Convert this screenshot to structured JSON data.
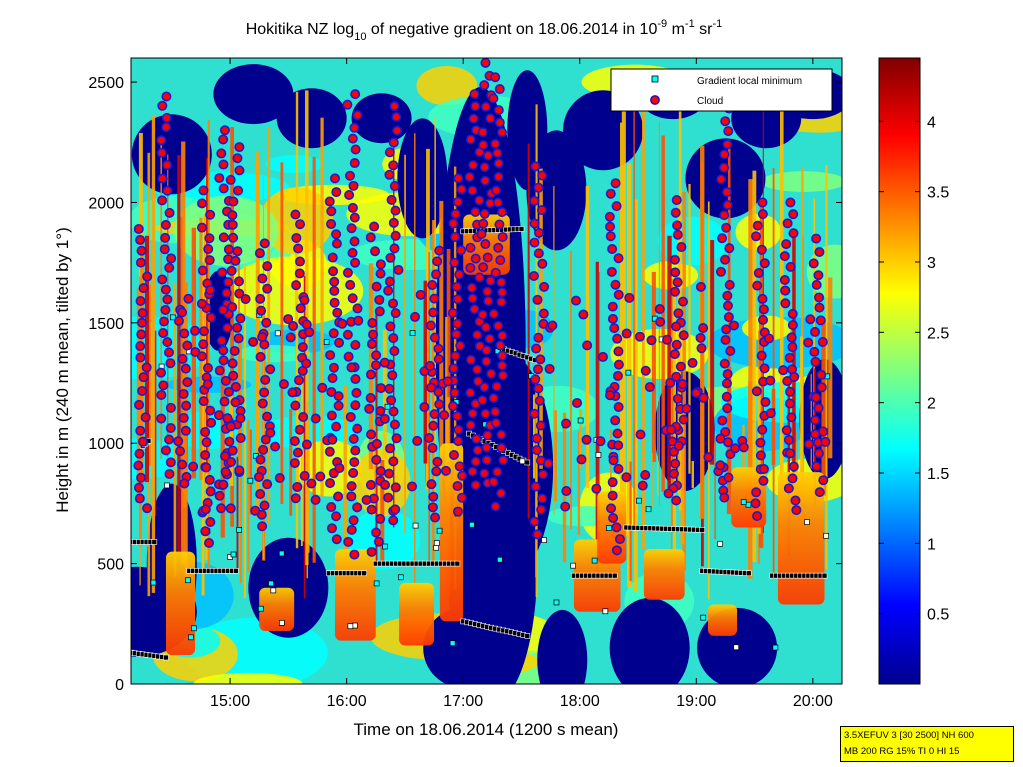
{
  "figure": {
    "title_parts": [
      "Hokitika NZ log",
      "10",
      " of negative gradient on 18.06.2014 in 10",
      "-9",
      " m",
      "-1",
      " sr",
      "-1"
    ]
  },
  "info_box": {
    "line1": "3.5XEFUV 3 [30 2500] NH 600",
    "line2": "MB 200 RG 15% TI 0 HI 15"
  },
  "chart_data": {
    "type": "heatmap",
    "xlabel": "Time on 18.06.2014 (1200 s mean)",
    "ylabel": "Height in m (240 m mean, tilted by 1°)",
    "xlim": [
      14.15,
      20.25
    ],
    "ylim": [
      0,
      2600
    ],
    "x_ticks": [
      15,
      16,
      17,
      18,
      19,
      20
    ],
    "x_tick_labels": [
      "15:00",
      "16:00",
      "17:00",
      "18:00",
      "19:00",
      "20:00"
    ],
    "y_ticks": [
      0,
      500,
      1000,
      1500,
      2000,
      2500
    ],
    "y_tick_labels": [
      "0",
      "500",
      "1000",
      "1500",
      "2000",
      "2500"
    ],
    "colorbar": {
      "lim": [
        0,
        4.45
      ],
      "ticks": [
        0.5,
        1,
        1.5,
        2,
        2.5,
        3,
        3.5,
        4
      ],
      "tick_labels": [
        "0.5",
        "1",
        "1.5",
        "2",
        "2.5",
        "3",
        "3.5",
        "4"
      ],
      "colormap": "jet"
    },
    "legend": {
      "position": "top-right",
      "entries": [
        {
          "label": "Gradient local minimum",
          "marker": "square",
          "color": "#00ffff"
        },
        {
          "label": "Cloud",
          "marker": "circle",
          "color": "#ff0000"
        }
      ]
    },
    "gradient_minimum_layers": [
      {
        "t": [
          14.15,
          14.35
        ],
        "h": [
          590,
          590
        ]
      },
      {
        "t": [
          14.15,
          14.45
        ],
        "h": [
          130,
          110
        ]
      },
      {
        "t": [
          14.25,
          14.3
        ],
        "h": [
          990,
          1010
        ]
      },
      {
        "t": [
          14.65,
          15.05
        ],
        "h": [
          470,
          470
        ]
      },
      {
        "t": [
          15.85,
          16.15
        ],
        "h": [
          460,
          460
        ]
      },
      {
        "t": [
          16.25,
          16.95
        ],
        "h": [
          500,
          500
        ]
      },
      {
        "t": [
          17.0,
          17.5
        ],
        "h": [
          1880,
          1890
        ]
      },
      {
        "t": [
          17.35,
          17.65
        ],
        "h": [
          1390,
          1340
        ]
      },
      {
        "t": [
          17.05,
          17.55
        ],
        "h": [
          1040,
          920
        ]
      },
      {
        "t": [
          17.0,
          17.55
        ],
        "h": [
          260,
          200
        ]
      },
      {
        "t": [
          17.95,
          18.3
        ],
        "h": [
          450,
          450
        ]
      },
      {
        "t": [
          18.4,
          19.05
        ],
        "h": [
          650,
          640
        ]
      },
      {
        "t": [
          19.05,
          19.45
        ],
        "h": [
          470,
          460
        ]
      },
      {
        "t": [
          19.65,
          20.1
        ],
        "h": [
          450,
          450
        ]
      }
    ],
    "cloud_bases": [
      {
        "t": 14.25,
        "h": 1890
      },
      {
        "t": 14.45,
        "h": 2440
      },
      {
        "t": 14.6,
        "h": 1600
      },
      {
        "t": 14.8,
        "h": 2050
      },
      {
        "t": 14.95,
        "h": 2300
      },
      {
        "t": 15.05,
        "h": 2230
      },
      {
        "t": 15.3,
        "h": 1830
      },
      {
        "t": 15.6,
        "h": 1950
      },
      {
        "t": 15.9,
        "h": 2100
      },
      {
        "t": 16.05,
        "h": 2450
      },
      {
        "t": 16.25,
        "h": 1900
      },
      {
        "t": 16.4,
        "h": 2400
      },
      {
        "t": 16.75,
        "h": 1800
      },
      {
        "t": 16.95,
        "h": 2100
      },
      {
        "t": 17.1,
        "h": 2450
      },
      {
        "t": 17.2,
        "h": 2580
      },
      {
        "t": 17.3,
        "h": 2520
      },
      {
        "t": 17.65,
        "h": 2150
      },
      {
        "t": 18.3,
        "h": 2080
      },
      {
        "t": 18.85,
        "h": 2010
      },
      {
        "t": 19.25,
        "h": 2390
      },
      {
        "t": 19.55,
        "h": 2000
      },
      {
        "t": 19.8,
        "h": 2000
      },
      {
        "t": 20.05,
        "h": 1850
      }
    ]
  }
}
